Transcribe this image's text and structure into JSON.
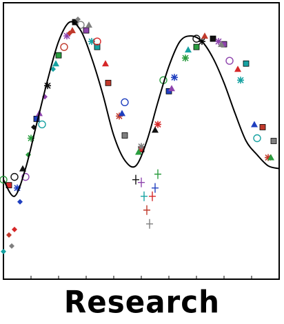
{
  "caption": "Research",
  "colors": {
    "frame": "#000000",
    "model": "#000000",
    "markers": [
      "#d62728",
      "#1f3fbf",
      "#2a9d3f",
      "#111111",
      "#8e44ad",
      "#17a2a2",
      "#c0392b",
      "#7f7f7f"
    ]
  },
  "chart_data": {
    "type": "scatter",
    "title": "",
    "xlabel": "",
    "ylabel": "",
    "xlim": [
      0,
      1
    ],
    "ylim": [
      0,
      1
    ],
    "grid": false,
    "legend": "none",
    "model_curve": {
      "x": [
        0.0,
        0.04,
        0.08,
        0.12,
        0.16,
        0.2,
        0.24,
        0.28,
        0.32,
        0.36,
        0.4,
        0.44,
        0.48,
        0.52,
        0.56,
        0.6,
        0.64,
        0.68,
        0.72,
        0.76,
        0.8,
        0.84,
        0.88,
        0.92,
        0.96,
        1.0
      ],
      "y": [
        0.36,
        0.3,
        0.4,
        0.56,
        0.72,
        0.86,
        0.93,
        0.9,
        0.8,
        0.67,
        0.52,
        0.43,
        0.41,
        0.5,
        0.64,
        0.77,
        0.86,
        0.88,
        0.86,
        0.8,
        0.71,
        0.6,
        0.5,
        0.45,
        0.41,
        0.4
      ]
    },
    "series": [
      {
        "marker": "square",
        "x": [
          0.02,
          0.12,
          0.2,
          0.26,
          0.3,
          0.34,
          0.38,
          0.44,
          0.5,
          0.6,
          0.7,
          0.76,
          0.8,
          0.88,
          0.94,
          0.98
        ],
        "y": [
          0.34,
          0.58,
          0.81,
          0.93,
          0.9,
          0.84,
          0.71,
          0.52,
          0.47,
          0.68,
          0.84,
          0.87,
          0.85,
          0.78,
          0.55,
          0.5
        ]
      },
      {
        "marker": "star",
        "x": [
          0.05,
          0.1,
          0.16,
          0.23,
          0.32,
          0.42,
          0.5,
          0.56,
          0.62,
          0.66,
          0.72,
          0.78,
          0.86,
          0.96
        ],
        "y": [
          0.33,
          0.51,
          0.7,
          0.88,
          0.86,
          0.59,
          0.48,
          0.56,
          0.73,
          0.8,
          0.86,
          0.86,
          0.72,
          0.44
        ]
      },
      {
        "marker": "circle-open",
        "x": [
          0.0,
          0.04,
          0.08,
          0.14,
          0.22,
          0.28,
          0.34,
          0.44,
          0.58,
          0.7,
          0.82,
          0.92
        ],
        "y": [
          0.36,
          0.37,
          0.37,
          0.56,
          0.84,
          0.92,
          0.86,
          0.64,
          0.72,
          0.87,
          0.79,
          0.51
        ]
      },
      {
        "marker": "triangle",
        "x": [
          0.07,
          0.13,
          0.19,
          0.25,
          0.31,
          0.37,
          0.43,
          0.49,
          0.55,
          0.61,
          0.67,
          0.73,
          0.79,
          0.85,
          0.91,
          0.97
        ],
        "y": [
          0.4,
          0.6,
          0.78,
          0.9,
          0.92,
          0.78,
          0.6,
          0.46,
          0.54,
          0.69,
          0.83,
          0.88,
          0.85,
          0.76,
          0.56,
          0.44
        ]
      },
      {
        "marker": "plus",
        "x": [
          0.5,
          0.51,
          0.52,
          0.53,
          0.54,
          0.55,
          0.56,
          0.48
        ],
        "y": [
          0.35,
          0.3,
          0.25,
          0.2,
          0.3,
          0.33,
          0.38,
          0.36
        ]
      },
      {
        "marker": "diamond",
        "x": [
          0.0,
          0.02,
          0.03,
          0.04,
          0.06,
          0.09,
          0.11,
          0.15,
          0.18,
          0.24,
          0.27
        ],
        "y": [
          0.1,
          0.16,
          0.12,
          0.18,
          0.28,
          0.45,
          0.55,
          0.66,
          0.76,
          0.89,
          0.94
        ]
      }
    ]
  }
}
